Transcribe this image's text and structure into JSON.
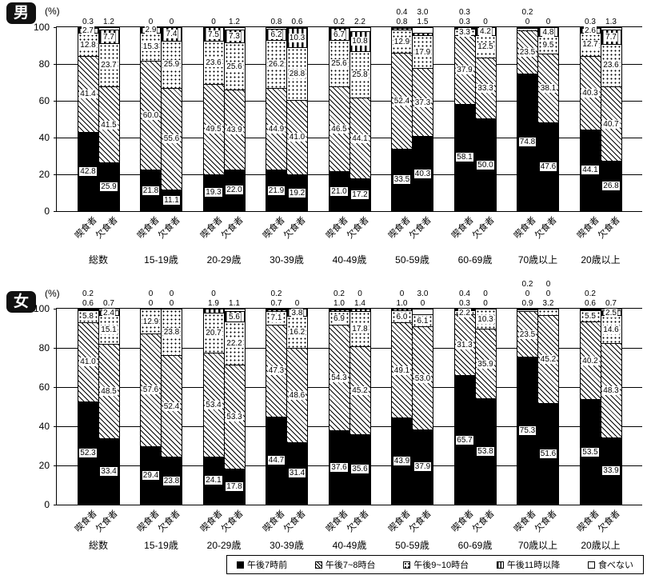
{
  "figure": {
    "background_color": "#ffffff",
    "foreground_color": "#000000"
  },
  "legend": {
    "items": [
      {
        "label": "午後7時前",
        "pattern": "solid"
      },
      {
        "label": "午後7~8時台",
        "pattern": "hatch"
      },
      {
        "label": "午後9~10時台",
        "pattern": "dots"
      },
      {
        "label": "午後11時以降",
        "pattern": "vstripe"
      },
      {
        "label": "食べない",
        "pattern": "plain"
      }
    ]
  },
  "chart_data": [
    {
      "type": "bar",
      "stacked": true,
      "orientation": "vertical",
      "title": "男",
      "percent_axis": {
        "label": "(%)",
        "max": 100,
        "ticks": [
          "100",
          "80",
          "60",
          "40",
          "20",
          "0"
        ]
      },
      "series_names": [
        "午後7時前",
        "午後7~8時台",
        "午後9~10時台",
        "午後11時以降",
        "食べない"
      ],
      "bar_names": [
        "喫食者",
        "欠食者"
      ],
      "categories": [
        "総数",
        "15-19歳",
        "20-29歳",
        "30-39歳",
        "40-49歳",
        "50-59歳",
        "60-69歳",
        "70歳以上",
        "20歳以上"
      ],
      "groups": [
        {
          "category": "総数",
          "bars": [
            {
              "name": "喫食者",
              "values": [
                42.8,
                41.4,
                12.8,
                2.7,
                0.3
              ],
              "labels": [
                "42.8",
                "41.4",
                "12.8",
                "2.7",
                ""
              ],
              "above": [
                "0.3"
              ]
            },
            {
              "name": "欠食者",
              "values": [
                25.9,
                41.5,
                23.7,
                7.7,
                1.2
              ],
              "labels": [
                "25.9",
                "41.5",
                "23.7",
                "7.7",
                ""
              ],
              "above": [
                "1.2"
              ]
            }
          ]
        },
        {
          "category": "15-19歳",
          "bars": [
            {
              "name": "喫食者",
              "values": [
                21.8,
                60.0,
                15.3,
                2.9,
                0
              ],
              "labels": [
                "21.8",
                "60.0",
                "15.3",
                "2.9",
                ""
              ],
              "above": [
                "0"
              ]
            },
            {
              "name": "欠食者",
              "values": [
                11.1,
                55.6,
                25.9,
                7.4,
                0
              ],
              "labels": [
                "11.1",
                "55.6",
                "25.9",
                "7.4",
                ""
              ],
              "above": [
                "0"
              ]
            }
          ]
        },
        {
          "category": "20-29歳",
          "bars": [
            {
              "name": "喫食者",
              "values": [
                19.3,
                49.5,
                23.6,
                7.5,
                0
              ],
              "labels": [
                "19.3",
                "49.5",
                "23.6",
                "7.5",
                ""
              ],
              "above": [
                "0"
              ]
            },
            {
              "name": "欠食者",
              "values": [
                22.0,
                43.9,
                25.6,
                7.3,
                1.2
              ],
              "labels": [
                "22.0",
                "43.9",
                "25.6",
                "7.3",
                ""
              ],
              "above": [
                "1.2"
              ]
            }
          ]
        },
        {
          "category": "30-39歳",
          "bars": [
            {
              "name": "喫食者",
              "values": [
                21.9,
                44.9,
                26.2,
                6.2,
                0.8
              ],
              "labels": [
                "21.9",
                "44.9",
                "26.2",
                "6.2",
                ""
              ],
              "above": [
                "0.8"
              ]
            },
            {
              "name": "欠食者",
              "values": [
                19.2,
                41.0,
                28.8,
                10.3,
                0.6
              ],
              "labels": [
                "19.2",
                "41.0",
                "28.8",
                "10.3",
                ""
              ],
              "above": [
                "0.6"
              ]
            }
          ]
        },
        {
          "category": "40-49歳",
          "bars": [
            {
              "name": "喫食者",
              "values": [
                21.0,
                46.5,
                25.6,
                6.7,
                0.2
              ],
              "labels": [
                "21.0",
                "46.5",
                "25.6",
                "6.7",
                ""
              ],
              "above": [
                "0.2"
              ]
            },
            {
              "name": "欠食者",
              "values": [
                17.2,
                44.1,
                25.8,
                10.8,
                2.2
              ],
              "labels": [
                "17.2",
                "44.1",
                "25.8",
                "10.8",
                ""
              ],
              "above": [
                "2.2"
              ]
            }
          ]
        },
        {
          "category": "50-59歳",
          "bars": [
            {
              "name": "喫食者",
              "values": [
                33.5,
                52.4,
                12.9,
                0.8,
                0.4
              ],
              "labels": [
                "33.5",
                "52.4",
                "12.9",
                "",
                ""
              ],
              "above": [
                "0.4",
                "0.8"
              ]
            },
            {
              "name": "欠食者",
              "values": [
                40.3,
                37.3,
                17.9,
                1.5,
                3.0
              ],
              "labels": [
                "40.3",
                "37.3",
                "17.9",
                "",
                ""
              ],
              "above": [
                "3.0",
                "1.5"
              ]
            }
          ]
        },
        {
          "category": "60-69歳",
          "bars": [
            {
              "name": "喫食者",
              "values": [
                58.1,
                37.9,
                3.3,
                0.3,
                0.3
              ],
              "labels": [
                "58.1",
                "37.9",
                "3.3",
                "",
                ""
              ],
              "above": [
                "0.3",
                "0.3"
              ]
            },
            {
              "name": "欠食者",
              "values": [
                50.0,
                33.3,
                12.5,
                4.2,
                0
              ],
              "labels": [
                "50.0",
                "33.3",
                "12.5",
                "4.2",
                ""
              ],
              "above": [
                "0"
              ]
            }
          ]
        },
        {
          "category": "70歳以上",
          "bars": [
            {
              "name": "喫食者",
              "values": [
                74.8,
                23.5,
                1.5,
                0,
                0.2
              ],
              "labels": [
                "74.8",
                "23.5",
                "",
                "",
                ""
              ],
              "above": [
                "0.2",
                "0"
              ]
            },
            {
              "name": "欠食者",
              "values": [
                47.6,
                38.1,
                9.5,
                4.8,
                0
              ],
              "labels": [
                "47.6",
                "38.1",
                "9.5",
                "4.8",
                ""
              ],
              "above": [
                "0"
              ]
            }
          ]
        },
        {
          "category": "20歳以上",
          "bars": [
            {
              "name": "喫食者",
              "values": [
                44.1,
                40.3,
                12.7,
                2.6,
                0.3
              ],
              "labels": [
                "44.1",
                "40.3",
                "12.7",
                "2.6",
                ""
              ],
              "above": [
                "0.3"
              ]
            },
            {
              "name": "欠食者",
              "values": [
                26.8,
                40.7,
                23.6,
                7.7,
                1.3
              ],
              "labels": [
                "26.8",
                "40.7",
                "23.6",
                "7.7",
                ""
              ],
              "above": [
                "1.3"
              ]
            }
          ]
        }
      ]
    },
    {
      "type": "bar",
      "stacked": true,
      "orientation": "vertical",
      "title": "女",
      "percent_axis": {
        "label": "(%)",
        "max": 100,
        "ticks": [
          "100",
          "80",
          "60",
          "40",
          "20",
          "0"
        ]
      },
      "series_names": [
        "午後7時前",
        "午後7~8時台",
        "午後9~10時台",
        "午後11時以降",
        "食べない"
      ],
      "bar_names": [
        "喫食者",
        "欠食者"
      ],
      "categories": [
        "総数",
        "15-19歳",
        "20-29歳",
        "30-39歳",
        "40-49歳",
        "50-59歳",
        "60-69歳",
        "70歳以上",
        "20歳以上"
      ],
      "groups": [
        {
          "category": "総数",
          "bars": [
            {
              "name": "喫食者",
              "values": [
                52.3,
                41.0,
                5.8,
                0.6,
                0.2
              ],
              "labels": [
                "52.3",
                "41.0",
                "5.8",
                "",
                ""
              ],
              "above": [
                "0.2",
                "0.6"
              ]
            },
            {
              "name": "欠食者",
              "values": [
                33.4,
                48.5,
                15.1,
                2.4,
                0.7
              ],
              "labels": [
                "33.4",
                "48.5",
                "15.1",
                "2.4",
                ""
              ],
              "above": [
                "0.7"
              ]
            }
          ]
        },
        {
          "category": "15-19歳",
          "bars": [
            {
              "name": "喫食者",
              "values": [
                29.4,
                57.6,
                12.9,
                0,
                0
              ],
              "labels": [
                "29.4",
                "57.6",
                "12.9",
                "",
                ""
              ],
              "above": [
                "0",
                "0"
              ]
            },
            {
              "name": "欠食者",
              "values": [
                23.8,
                52.4,
                23.8,
                0,
                0
              ],
              "labels": [
                "23.8",
                "52.4",
                "23.8",
                "",
                ""
              ],
              "above": [
                "0",
                "0"
              ]
            }
          ]
        },
        {
          "category": "20-29歳",
          "bars": [
            {
              "name": "喫食者",
              "values": [
                24.1,
                53.4,
                20.7,
                1.9,
                0
              ],
              "labels": [
                "24.1",
                "53.4",
                "20.7",
                "",
                ""
              ],
              "above": [
                "0",
                "1.9"
              ]
            },
            {
              "name": "欠食者",
              "values": [
                17.8,
                53.3,
                22.2,
                5.6,
                1.1
              ],
              "labels": [
                "17.8",
                "53.3",
                "22.2",
                "5.6",
                ""
              ],
              "above": [
                "1.1"
              ]
            }
          ]
        },
        {
          "category": "30-39歳",
          "bars": [
            {
              "name": "喫食者",
              "values": [
                44.7,
                47.3,
                7.1,
                0.7,
                0.2
              ],
              "labels": [
                "44.7",
                "47.3",
                "7.1",
                "",
                ""
              ],
              "above": [
                "0.2",
                "0.7"
              ]
            },
            {
              "name": "欠食者",
              "values": [
                31.4,
                48.6,
                16.2,
                3.8,
                0
              ],
              "labels": [
                "31.4",
                "48.6",
                "16.2",
                "3.8",
                ""
              ],
              "above": [
                "0"
              ]
            }
          ]
        },
        {
          "category": "40-49歳",
          "bars": [
            {
              "name": "喫食者",
              "values": [
                37.6,
                54.3,
                6.9,
                1.0,
                0.2
              ],
              "labels": [
                "37.6",
                "54.3",
                "6.9",
                "",
                ""
              ],
              "above": [
                "0.2",
                "1.0"
              ]
            },
            {
              "name": "欠食者",
              "values": [
                35.6,
                45.2,
                17.8,
                1.4,
                0
              ],
              "labels": [
                "35.6",
                "45.2",
                "17.8",
                "",
                ""
              ],
              "above": [
                "0",
                "1.4"
              ]
            }
          ]
        },
        {
          "category": "50-59歳",
          "bars": [
            {
              "name": "喫食者",
              "values": [
                43.9,
                49.1,
                6.0,
                1.0,
                0
              ],
              "labels": [
                "43.9",
                "49.1",
                "6.0",
                "",
                ""
              ],
              "above": [
                "0",
                "1.0"
              ]
            },
            {
              "name": "欠食者",
              "values": [
                37.9,
                53.0,
                6.1,
                0,
                3.0
              ],
              "labels": [
                "37.9",
                "53.0",
                "6.1",
                "",
                ""
              ],
              "above": [
                "3.0",
                "0"
              ]
            }
          ]
        },
        {
          "category": "60-69歳",
          "bars": [
            {
              "name": "喫食者",
              "values": [
                65.7,
                31.3,
                2.2,
                0.3,
                0.4
              ],
              "labels": [
                "65.7",
                "31.3",
                "2.2",
                "",
                ""
              ],
              "above": [
                "0.4",
                "0.3"
              ]
            },
            {
              "name": "欠食者",
              "values": [
                53.8,
                35.9,
                10.3,
                0,
                0
              ],
              "labels": [
                "53.8",
                "35.9",
                "10.3",
                "",
                ""
              ],
              "above": [
                "0",
                "0"
              ]
            }
          ]
        },
        {
          "category": "70歳以上",
          "bars": [
            {
              "name": "喫食者",
              "values": [
                75.3,
                23.5,
                0.9,
                0,
                0.2
              ],
              "labels": [
                "75.3",
                "23.5",
                "",
                "",
                ""
              ],
              "above": [
                "0.2",
                "0",
                "0.9"
              ]
            },
            {
              "name": "欠食者",
              "values": [
                51.6,
                45.2,
                3.2,
                0,
                0
              ],
              "labels": [
                "51.6",
                "45.2",
                "",
                "",
                ""
              ],
              "above": [
                "0",
                "0",
                "3.2"
              ]
            }
          ]
        },
        {
          "category": "20歳以上",
          "bars": [
            {
              "name": "喫食者",
              "values": [
                53.5,
                40.2,
                5.5,
                0.6,
                0.2
              ],
              "labels": [
                "53.5",
                "40.2",
                "5.5",
                "",
                ""
              ],
              "above": [
                "0.2",
                "0.6"
              ]
            },
            {
              "name": "欠食者",
              "values": [
                33.9,
                48.3,
                14.6,
                2.5,
                0.7
              ],
              "labels": [
                "33.9",
                "48.3",
                "14.6",
                "2.5",
                ""
              ],
              "above": [
                "0.7"
              ]
            }
          ]
        }
      ]
    }
  ]
}
